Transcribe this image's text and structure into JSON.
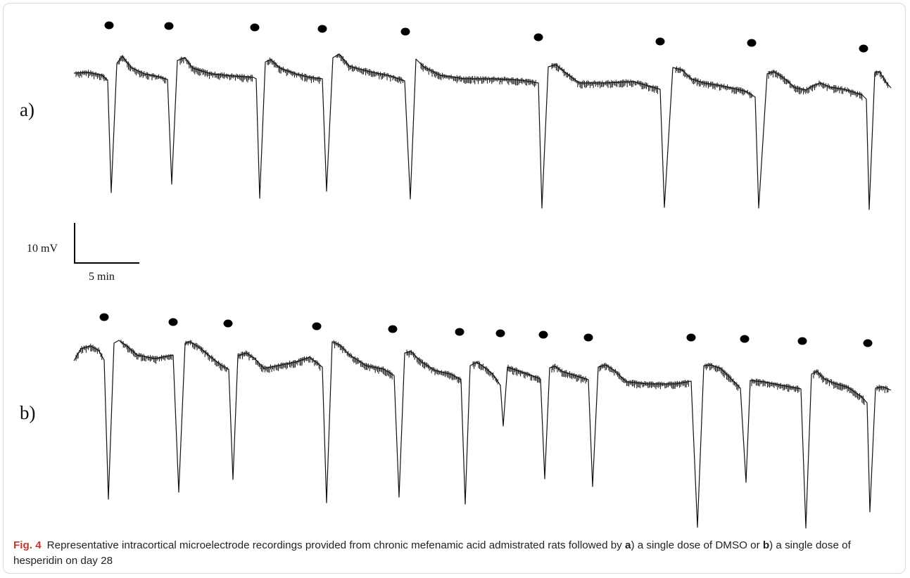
{
  "panels": [
    {
      "label": "a)",
      "events": 9
    },
    {
      "label": "b)",
      "events": 13
    }
  ],
  "scale_bar": {
    "vertical": "10 mV",
    "horizontal": "5 min"
  },
  "caption": {
    "figure_label": "Fig. 4",
    "text_1": "Representative intracortical microelectrode recordings provided from chronic mefenamic acid admistrated rats followed by ",
    "bold_a": "a",
    "text_2": ") a single dose of DMSO or ",
    "bold_b": "b",
    "text_3": ") a single dose of hesperidin on day 28"
  }
}
